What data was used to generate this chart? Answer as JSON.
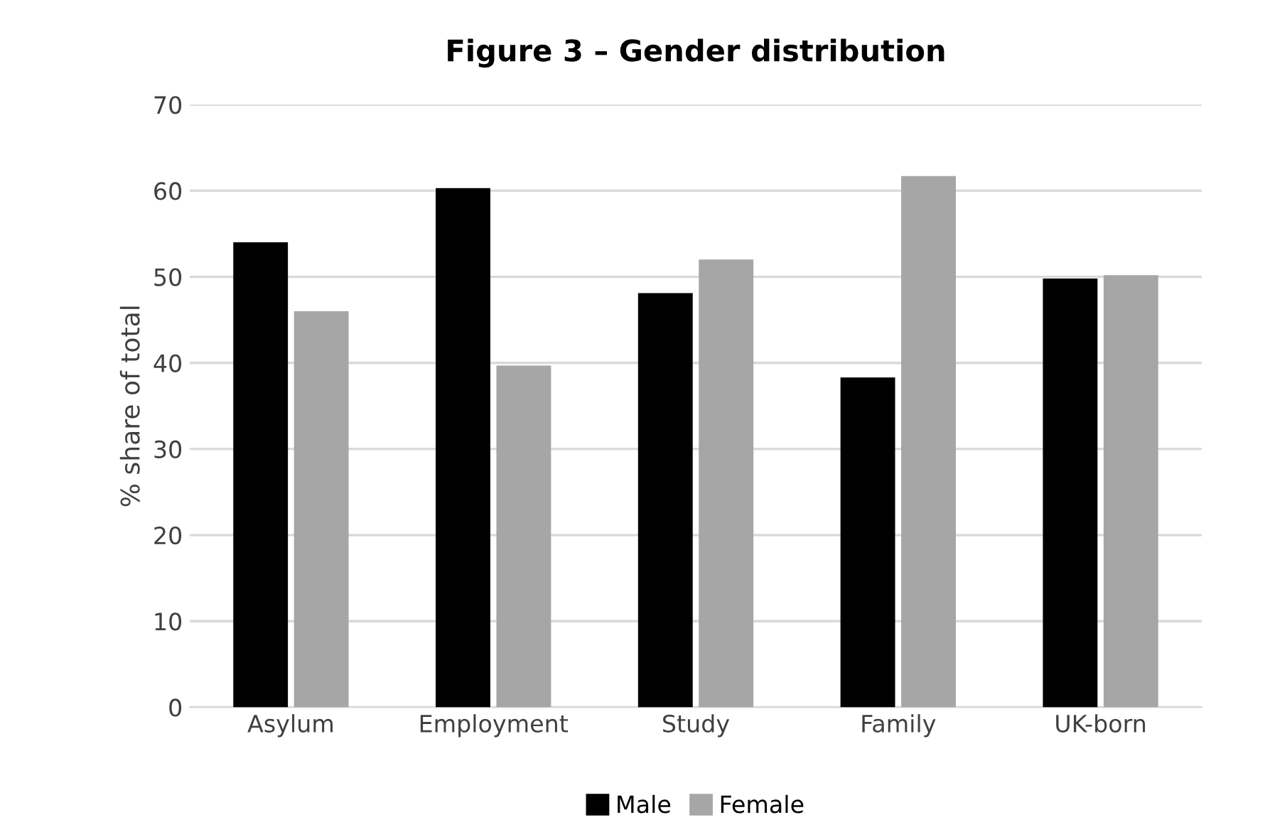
{
  "chart_data": {
    "type": "bar",
    "title": "Figure 3 – Gender distribution",
    "ylabel": "% share of total",
    "categories": [
      "Asylum",
      "Employment",
      "Study",
      "Family",
      "UK-born"
    ],
    "series": [
      {
        "name": "Male",
        "color": "#000000",
        "values": [
          54.0,
          60.3,
          48.1,
          38.3,
          49.8
        ]
      },
      {
        "name": "Female",
        "color": "#a6a6a6",
        "values": [
          46.0,
          39.7,
          52.0,
          61.7,
          50.2
        ]
      }
    ],
    "ylim": [
      0,
      70
    ],
    "yticks": [
      0,
      10,
      20,
      30,
      40,
      50,
      60,
      70
    ],
    "grid": "y",
    "legend": "bottom"
  }
}
